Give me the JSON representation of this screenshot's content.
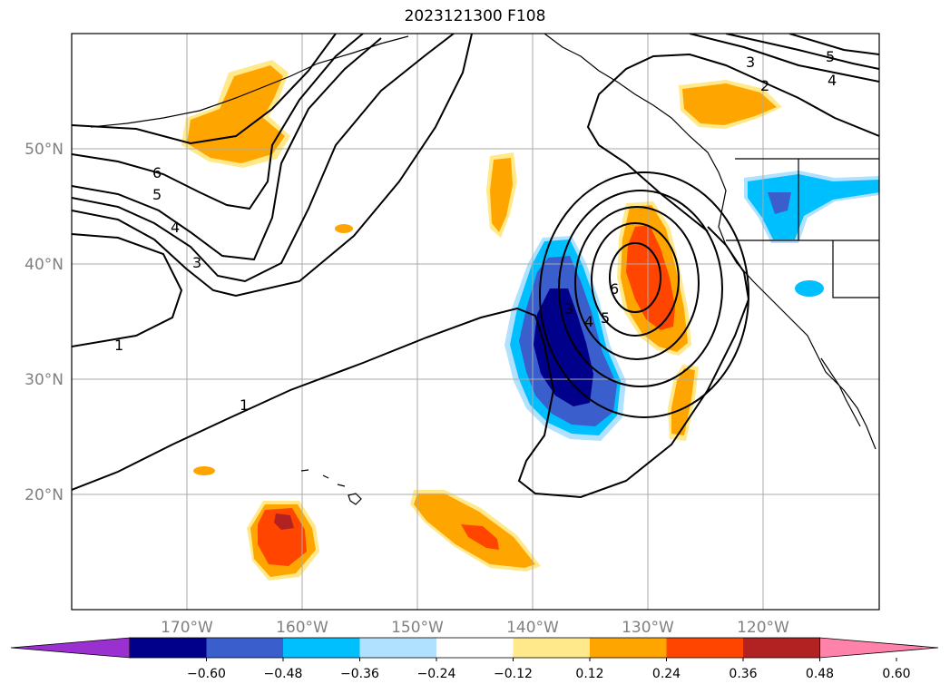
{
  "title": "2023121300 F108",
  "map": {
    "projection": "PlateCarree",
    "lon_range": [
      -180,
      -110
    ],
    "lat_range": [
      10,
      60
    ],
    "gridlines": true,
    "lon_ticks": [
      "170°W",
      "160°W",
      "150°W",
      "140°W",
      "130°W",
      "120°W"
    ],
    "lat_ticks": [
      "50°N",
      "40°N",
      "30°N",
      "20°N"
    ],
    "contour_labels": [
      "6",
      "5",
      "4",
      "3",
      "1",
      "1",
      "3",
      "4",
      "5",
      "6",
      "3",
      "4",
      "5",
      "2"
    ]
  },
  "colorbar": {
    "ticks": [
      "−0.60",
      "−0.48",
      "−0.36",
      "−0.24",
      "−0.12",
      "0.12",
      "0.24",
      "0.36",
      "0.48",
      "0.60"
    ],
    "colors": [
      "#9b30d0",
      "#00008b",
      "#3a5fcd",
      "#00bfff",
      "#b0e2ff",
      "#ffffff",
      "#ffe98a",
      "#ffa500",
      "#ff4500",
      "#b22222",
      "#ff82ab"
    ],
    "extend": "both"
  }
}
